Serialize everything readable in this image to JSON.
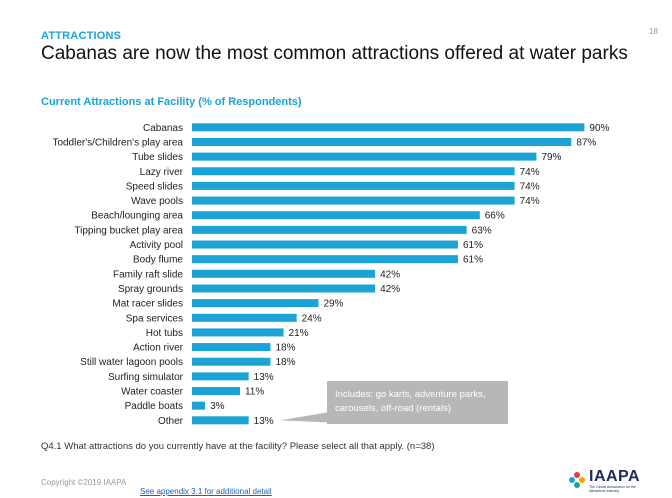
{
  "page_number": "18",
  "section_label": "ATTRACTIONS",
  "main_title": "Cabanas are now the most common attractions offered at water parks",
  "chart_title": "Current Attractions at Facility (% of Respondents)",
  "callout_text": "Includes: go karts, adventure parks, carousels, off-road (rentals)",
  "question": "Q4.1 What attractions do you currently have at the facility? Please select all that apply. (n=38)",
  "copyright": "Copyright ©2019 IAAPA",
  "appendix_link": "See appendix 3.1 for additional detail",
  "logo": {
    "name": "IAAPA",
    "tagline": "The Global Association for the Attractions Industry"
  },
  "colors": {
    "bar": "#1aa3d4",
    "accent": "#1aa3d4",
    "callout": "#b7b7b7"
  },
  "chart_data": {
    "type": "bar",
    "orientation": "horizontal",
    "title": "Current Attractions at Facility (% of Respondents)",
    "xlabel": "",
    "ylabel": "",
    "xlim": [
      0,
      100
    ],
    "unit": "%",
    "categories": [
      "Cabanas",
      "Toddler's/Children's play area",
      "Tube slides",
      "Lazy river",
      "Speed slides",
      "Wave pools",
      "Beach/lounging area",
      "Tipping bucket play area",
      "Activity pool",
      "Body flume",
      "Family raft slide",
      "Spray grounds",
      "Mat racer slides",
      "Spa services",
      "Hot tubs",
      "Action river",
      "Still water lagoon pools",
      "Surfing simulator",
      "Water coaster",
      "Paddle boats",
      "Other"
    ],
    "values": [
      90,
      87,
      79,
      74,
      74,
      74,
      66,
      63,
      61,
      61,
      42,
      42,
      29,
      24,
      21,
      18,
      18,
      13,
      11,
      3,
      13
    ]
  }
}
